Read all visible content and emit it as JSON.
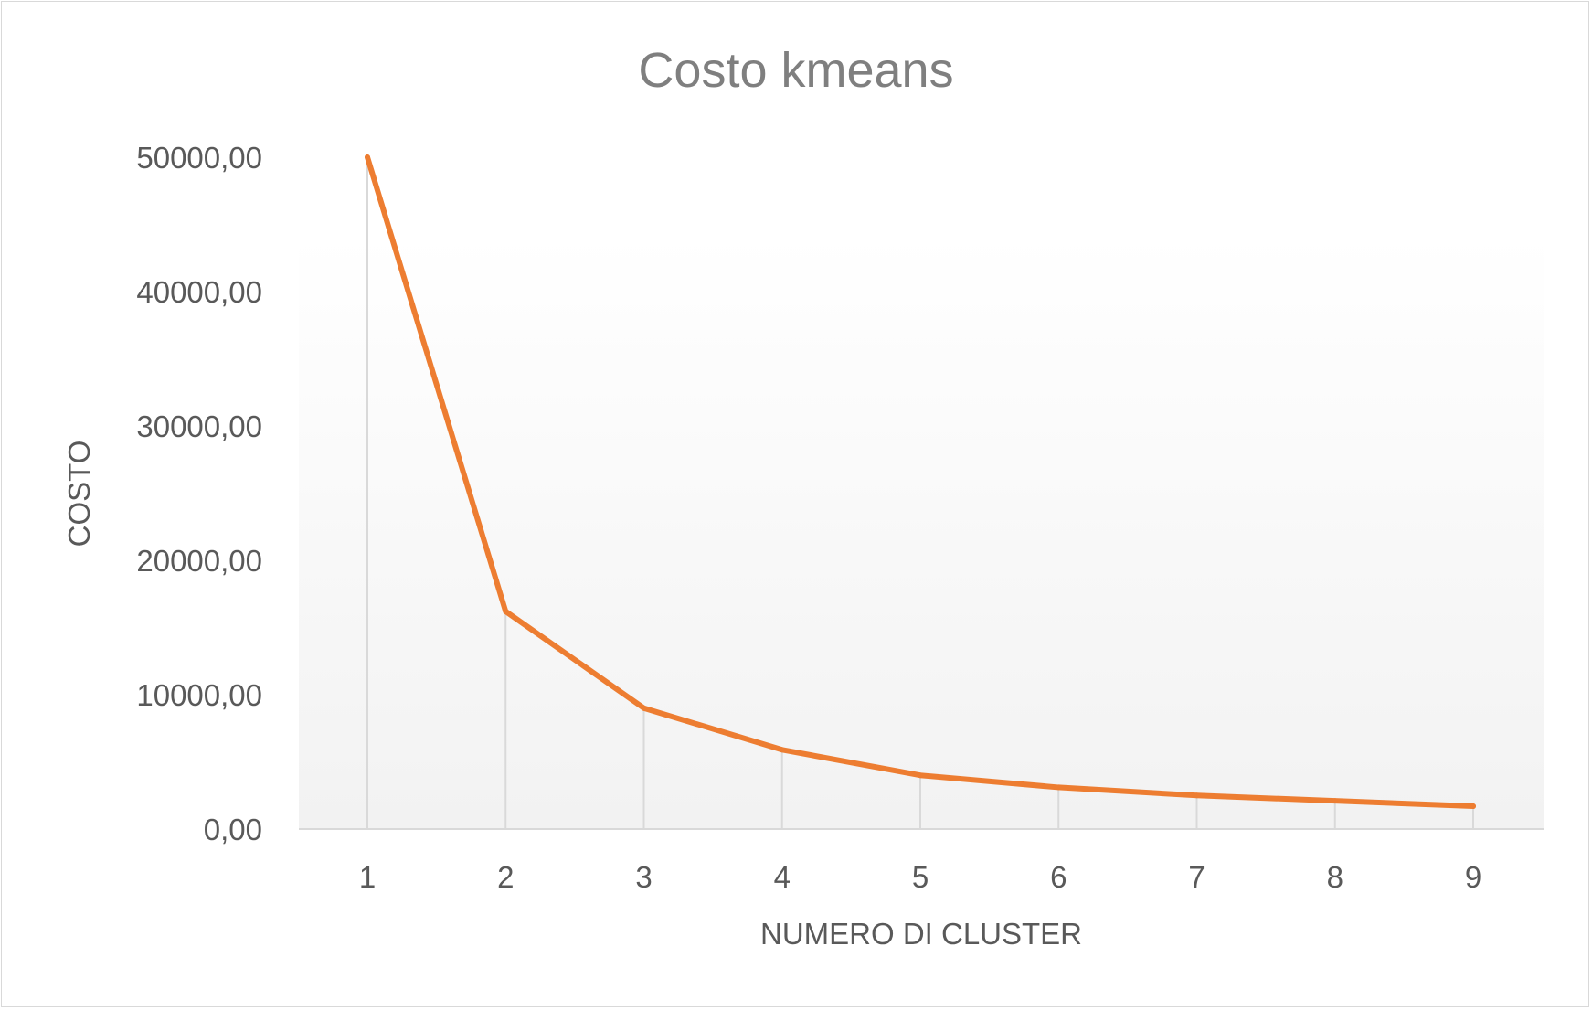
{
  "chart_data": {
    "type": "line",
    "title": "Costo kmeans",
    "xlabel": "NUMERO DI CLUSTER",
    "ylabel": "COSTO",
    "categories": [
      "1",
      "2",
      "3",
      "4",
      "5",
      "6",
      "7",
      "8",
      "9"
    ],
    "y_ticks": [
      "0,00",
      "10000,00",
      "20000,00",
      "30000,00",
      "40000,00",
      "50000,00"
    ],
    "ylim": [
      0,
      50000
    ],
    "series": [
      {
        "values": [
          50000,
          16200,
          9000,
          5900,
          4000,
          3100,
          2500,
          2100,
          1700
        ]
      }
    ],
    "colors": {
      "line": "#ed7d31",
      "drop_lines": "#d9d9d9",
      "axis": "#d9d9d9",
      "plot_gradient_top": "#ffffff",
      "plot_gradient_bottom": "#f2f2f2"
    },
    "grid": false,
    "legend": "none"
  }
}
